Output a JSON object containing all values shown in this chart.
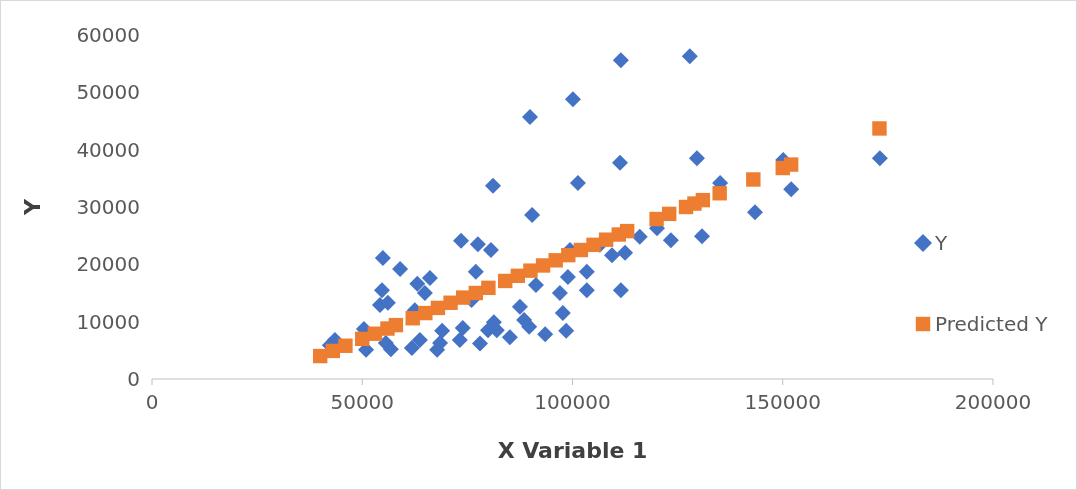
{
  "chart_data": {
    "type": "scatter",
    "xlabel": "X Variable 1",
    "ylabel": "Y",
    "xlim": [
      0,
      200000
    ],
    "xticks": [
      0,
      50000,
      100000,
      150000,
      200000
    ],
    "ylim": [
      0,
      60000
    ],
    "yticks": [
      0,
      10000,
      20000,
      30000,
      40000,
      50000,
      60000
    ],
    "grid": false,
    "legend": "right",
    "series": [
      {
        "name": "Y",
        "color": "#4472c4",
        "marker": "diamond",
        "x": [
          42300,
          43500,
          50400,
          50900,
          54900,
          54700,
          54200,
          56100,
          55600,
          56800,
          59000,
          62500,
          63100,
          64900,
          66100,
          61800,
          63700,
          67800,
          68500,
          69000,
          73500,
          73900,
          73200,
          77500,
          77000,
          78000,
          80600,
          81100,
          79900,
          81300,
          82000,
          85100,
          87500,
          88500,
          89700,
          89900,
          90400,
          91300,
          93500,
          97000,
          97700,
          98500,
          100100,
          101300,
          98900,
          103400,
          103400,
          109400,
          111300,
          111500,
          111500,
          112500,
          120100,
          123400,
          127900,
          129600,
          130800,
          135100,
          143400,
          150100,
          152000,
          173100,
          76000,
          106500,
          116000,
          99400
        ],
        "values": [
          5900,
          6800,
          8700,
          5100,
          21100,
          15500,
          12900,
          13300,
          6300,
          5200,
          19200,
          12000,
          16600,
          15000,
          17600,
          5400,
          6800,
          5100,
          6300,
          8400,
          24100,
          8900,
          6800,
          23500,
          18700,
          6200,
          22500,
          33700,
          8500,
          9900,
          8500,
          7300,
          12600,
          10300,
          9100,
          45700,
          28600,
          16400,
          7800,
          15000,
          11500,
          8400,
          48800,
          34200,
          17800,
          15500,
          18700,
          21600,
          37700,
          55600,
          15500,
          22000,
          26300,
          24200,
          56300,
          38500,
          24900,
          34200,
          29100,
          38200,
          33100,
          38500,
          13800,
          23400,
          24800,
          22500
        ]
      },
      {
        "name": "Predicted Y",
        "color": "#ed7d31",
        "marker": "square",
        "x": [
          40000,
          43000,
          46000,
          50000,
          53000,
          56000,
          58000,
          62000,
          65000,
          68000,
          71000,
          74000,
          77000,
          80000,
          84000,
          87000,
          90000,
          93000,
          96000,
          99000,
          102000,
          105000,
          108000,
          111000,
          113000,
          120000,
          123000,
          127000,
          129000,
          131000,
          135000,
          143000,
          150000,
          152000,
          173000
        ],
        "values": [
          4000,
          4900,
          5800,
          7000,
          7900,
          8800,
          9400,
          10600,
          11500,
          12400,
          13300,
          14200,
          15000,
          15900,
          17100,
          18000,
          18900,
          19800,
          20700,
          21600,
          22500,
          23400,
          24300,
          25200,
          25800,
          27900,
          28800,
          30000,
          30600,
          31200,
          32400,
          34800,
          36800,
          37400,
          43700
        ]
      }
    ]
  }
}
